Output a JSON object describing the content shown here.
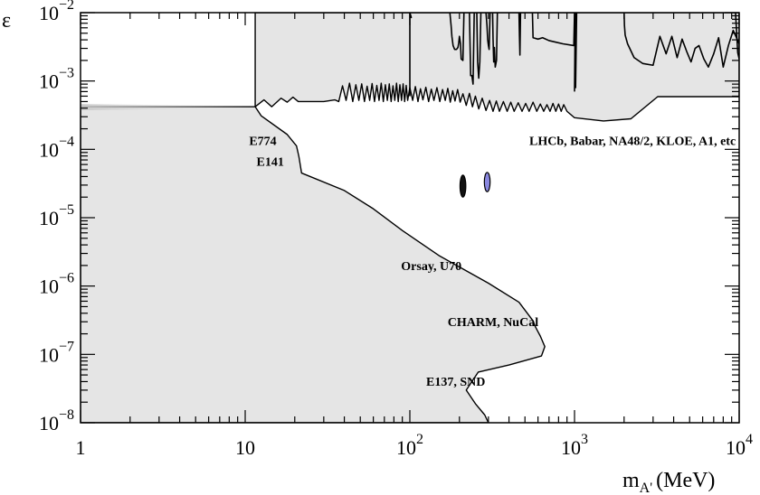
{
  "chart_data": {
    "type": "area",
    "title": "",
    "xlabel": "m",
    "xlabel_sub": "A'",
    "xlabel_unit": "(MeV)",
    "ylabel": "ε",
    "xscale": "log",
    "yscale": "log",
    "xlim": [
      1,
      10000
    ],
    "ylim": [
      1e-08,
      0.01
    ],
    "grid": false,
    "x_ticks": [
      {
        "value": 1,
        "label": "1"
      },
      {
        "value": 10,
        "label": "10"
      },
      {
        "value": 100,
        "label": "10",
        "exp": "2"
      },
      {
        "value": 1000,
        "label": "10",
        "exp": "3"
      },
      {
        "value": 10000,
        "label": "10",
        "exp": "4"
      }
    ],
    "y_ticks": [
      {
        "value": 1e-08,
        "label": "10",
        "exp": "−8"
      },
      {
        "value": 1e-07,
        "label": "10",
        "exp": "−7"
      },
      {
        "value": 1e-06,
        "label": "10",
        "exp": "−6"
      },
      {
        "value": 1e-05,
        "label": "10",
        "exp": "−5"
      },
      {
        "value": 0.0001,
        "label": "10",
        "exp": "−4"
      },
      {
        "value": 0.001,
        "label": "10",
        "exp": "−3"
      },
      {
        "value": 0.01,
        "label": "10",
        "exp": "−2"
      }
    ],
    "colors": {
      "excluded_fill": "#e5e5e5",
      "outline": "#000000",
      "signal_fill": "#8a88e0"
    },
    "annotations": [
      {
        "text": "E774",
        "x": 12.8,
        "y": 0.000115
      },
      {
        "text": "E141",
        "x": 14.2,
        "y": 5.75e-05
      },
      {
        "text": "Orsay, U70",
        "x": 135,
        "y": 1.7e-06
      },
      {
        "text": "CHARM, NuCal",
        "x": 320,
        "y": 2.6e-07
      },
      {
        "text": "E137, SND",
        "x": 190,
        "y": 3.5e-08
      },
      {
        "text": "LHCb, Babar, NA48/2, KLOE, A1, etc",
        "x": 2250,
        "y": 0.000115
      }
    ],
    "series": [
      {
        "region": "beam-dump-exclusion",
        "x": [
          1,
          1,
          11.5,
          12.5,
          18,
          20.5,
          21.2,
          22,
          40,
          60,
          90,
          150,
          300,
          460,
          560,
          580,
          620,
          660,
          630,
          400,
          260,
          220,
          250,
          285,
          300,
          1
        ],
        "y": [
          1e-08,
          0.00042,
          0.00042,
          0.00031,
          0.000165,
          0.000112,
          7.8e-05,
          4.5e-05,
          2.5e-05,
          1.35e-05,
          6.5e-06,
          2.8e-06,
          1.1e-06,
          5.8e-07,
          3.1e-07,
          2.5e-07,
          1.85e-07,
          1.3e-07,
          9.5e-08,
          7e-08,
          5.5e-08,
          3e-08,
          1.9e-08,
          1.3e-08,
          1e-08,
          1e-08
        ]
      },
      {
        "region": "collider-fixed-target-exclusion",
        "x": [
          11.5,
          13,
          14.5,
          16.5,
          18,
          19.5,
          21,
          30,
          35,
          37,
          39,
          41,
          43,
          45,
          47,
          49,
          51,
          53,
          55,
          57,
          59,
          61,
          63,
          65,
          67,
          69,
          71,
          73,
          75,
          77,
          79,
          81,
          83,
          85,
          87,
          89,
          91,
          93,
          95,
          97,
          100,
          104,
          108,
          112,
          116,
          120,
          125,
          130,
          135,
          140,
          146,
          152,
          158,
          164,
          170,
          176,
          182,
          188,
          195,
          202,
          210,
          220,
          230,
          240,
          250,
          262,
          275,
          290,
          305,
          320,
          335,
          350,
          370,
          390,
          410,
          430,
          455,
          480,
          505,
          530,
          560,
          590,
          620,
          650,
          680,
          710,
          740,
          770,
          800,
          830,
          860,
          900,
          1000,
          1500,
          2200,
          3200,
          5000,
          6000,
          8000,
          10000,
          10000,
          11.5
        ],
        "y": [
          0.00042,
          0.00053,
          0.00042,
          0.00056,
          0.00049,
          0.00058,
          0.0005,
          0.0005,
          0.00053,
          0.0005,
          0.00085,
          0.00052,
          0.00093,
          0.0005,
          0.00088,
          0.00052,
          0.00091,
          0.0005,
          0.00084,
          0.00052,
          0.00092,
          0.0005,
          0.00086,
          0.00052,
          0.00093,
          0.0005,
          0.00088,
          0.00052,
          0.00091,
          0.0005,
          0.00085,
          0.00052,
          0.00093,
          0.0005,
          0.00088,
          0.00052,
          0.00091,
          0.0005,
          0.00086,
          0.00052,
          0.0008,
          0.00052,
          0.00083,
          0.0005,
          0.00077,
          0.00053,
          0.00081,
          0.0005,
          0.00076,
          0.00052,
          0.0008,
          0.0005,
          0.00075,
          0.00052,
          0.00078,
          0.00049,
          0.00072,
          0.00051,
          0.00075,
          0.00049,
          0.00065,
          0.00044,
          0.00066,
          0.00042,
          0.0006,
          0.00039,
          0.00056,
          0.00037,
          0.00052,
          0.00036,
          0.00051,
          0.00036,
          0.0005,
          0.00036,
          0.00049,
          0.00036,
          0.00048,
          0.00036,
          0.00047,
          0.00036,
          0.00049,
          0.00036,
          0.00046,
          0.00036,
          0.00045,
          0.00036,
          0.00047,
          0.00036,
          0.00046,
          0.00036,
          0.00045,
          0.00036,
          0.00029,
          0.00026,
          0.00028,
          0.00059,
          0.00059,
          0.00059,
          0.00059,
          0.00059,
          0.01,
          0.01
        ]
      },
      {
        "region": "upper-contours",
        "lines": [
          {
            "x": [
              100,
              100,
              102,
              100
            ],
            "y": [
              0.0006,
              0.01,
              0.0085,
              0.01
            ]
          },
          {
            "x": [
              175,
              178,
              180,
              183,
              187,
              192,
              196,
              198,
              200,
              203,
              205,
              210,
              213
            ],
            "y": [
              0.01,
              0.0065,
              0.0045,
              0.0033,
              0.0029,
              0.0029,
              0.0031,
              0.0036,
              0.0045,
              0.0035,
              0.0021,
              0.002,
              0.01
            ]
          },
          {
            "x": [
              230,
              234,
              238,
              242,
              246
            ],
            "y": [
              0.01,
              0.0012,
              0.0012,
              0.0009,
              0.01
            ]
          },
          {
            "x": [
              255,
              258,
              262,
              266,
              270
            ],
            "y": [
              0.01,
              0.0019,
              0.0011,
              0.0019,
              0.01
            ]
          },
          {
            "x": [
              290,
              294,
              297,
              300,
              303,
              307
            ],
            "y": [
              0.01,
              0.0065,
              0.004,
              0.0033,
              0.0029,
              0.01
            ]
          },
          {
            "x": [
              318,
              320,
              323,
              326,
              330,
              336,
              340
            ],
            "y": [
              0.01,
              0.0042,
              0.0019,
              0.0031,
              0.0016,
              0.002,
              0.01
            ]
          },
          {
            "x": [
              460,
              463,
              466,
              470
            ],
            "y": [
              0.01,
              0.0045,
              0.0024,
              0.01
            ]
          },
          {
            "x": [
              555,
              560,
              600,
              640,
              700,
              770,
              850,
              990,
              1000
            ],
            "y": [
              0.01,
              0.0043,
              0.0041,
              0.0043,
              0.0039,
              0.0037,
              0.0035,
              0.0033,
              0.01
            ]
          },
          {
            "x": [
              1000,
              1010,
              1015,
              1030
            ],
            "y": [
              0.0007,
              0.01,
              0.0008,
              0.01
            ]
          },
          {
            "x": [
              2000,
              2010,
              2030,
              2100,
              2300,
              2600,
              3000,
              3300,
              3600,
              3900,
              4200,
              4500,
              4800,
              5100,
              5400,
              5700,
              6100,
              6500,
              7000,
              7500,
              8000,
              8600,
              9200,
              10000
            ],
            "y": [
              0.01,
              0.0065,
              0.0047,
              0.0035,
              0.0022,
              0.0018,
              0.0017,
              0.0045,
              0.0025,
              0.0045,
              0.0022,
              0.0041,
              0.0027,
              0.0019,
              0.003,
              0.0033,
              0.0021,
              0.0016,
              0.0025,
              0.0043,
              0.0016,
              0.0033,
              0.0055,
              0.0035
            ]
          },
          {
            "x": [
              9500,
              9800,
              10000
            ],
            "y": [
              0.01,
              0.0026,
              0.0021
            ]
          }
        ]
      },
      {
        "region": "signal-contours",
        "islands": [
          {
            "xc": 210,
            "yc": 3e-05,
            "y_low": 2e-05,
            "y_high": 4.2e-05,
            "fill": "#111111"
          },
          {
            "xc": 295,
            "yc": 3.3e-05,
            "y_low": 2.4e-05,
            "y_high": 4.6e-05,
            "fill": "#8a88e0"
          }
        ]
      }
    ]
  }
}
